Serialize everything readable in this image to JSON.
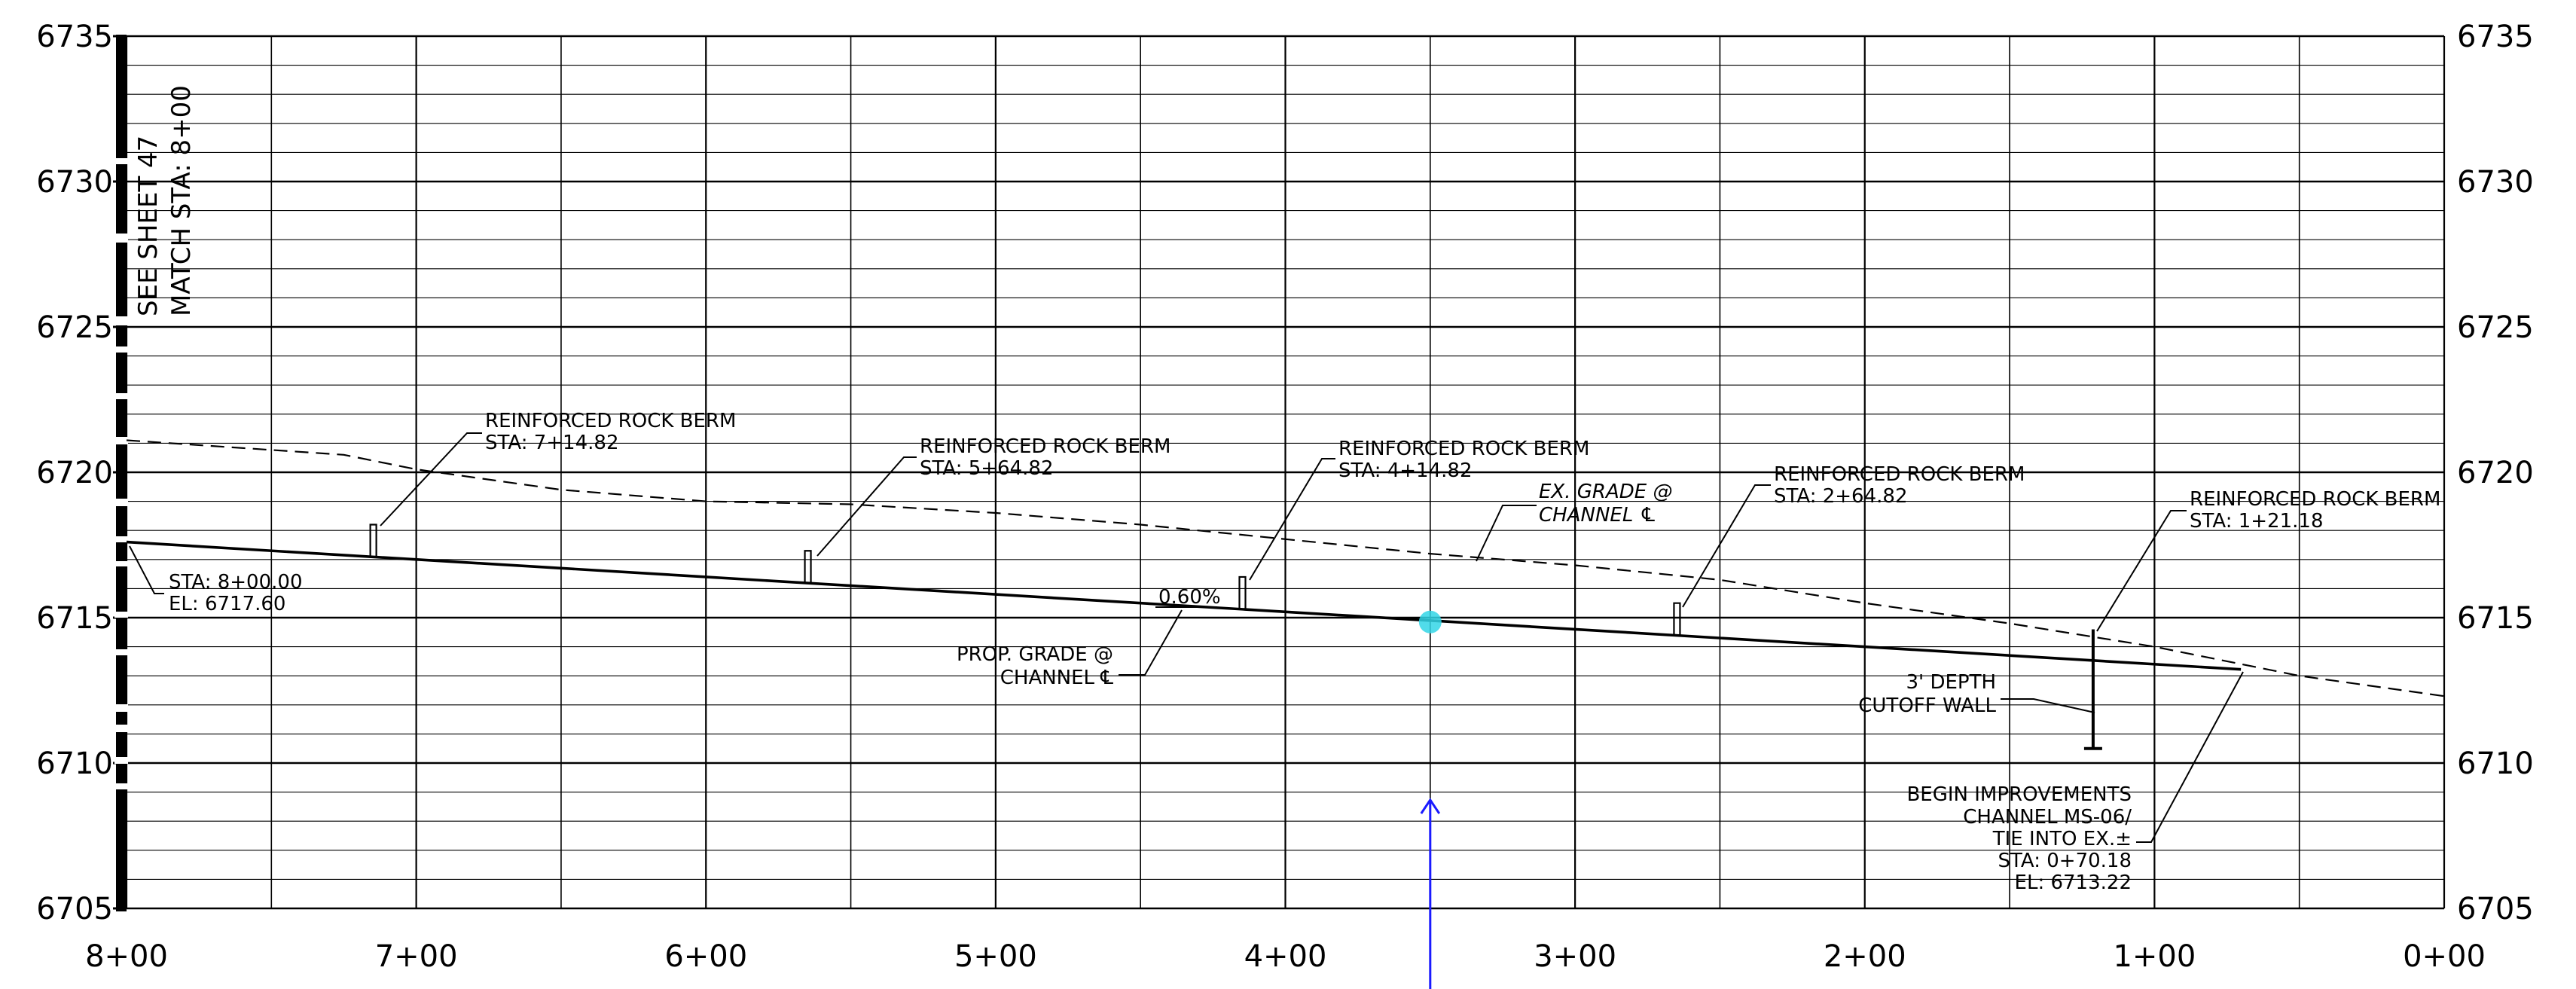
{
  "chart_data": {
    "type": "line",
    "title": "",
    "xlabel": "",
    "ylabel": "",
    "x_ticks": [
      "8+00",
      "7+00",
      "6+00",
      "5+00",
      "4+00",
      "3+00",
      "2+00",
      "1+00",
      "0+00"
    ],
    "y_ticks_left": [
      "6735",
      "6730",
      "6725",
      "6720",
      "6715",
      "6710",
      "6705"
    ],
    "y_ticks_right": [
      "6735",
      "6730",
      "6725",
      "6720",
      "6715",
      "6710",
      "6705"
    ],
    "xlim": [
      800,
      0
    ],
    "ylim": [
      6705,
      6735
    ],
    "grid": true,
    "series": [
      {
        "role": "existing-grade",
        "values": [
          [
            800,
            6721.1
          ],
          [
            725,
            6720.6
          ],
          [
            700,
            6720.1
          ],
          [
            650,
            6719.4
          ],
          [
            600,
            6719.0
          ],
          [
            550,
            6718.9
          ],
          [
            500,
            6718.6
          ],
          [
            450,
            6718.2
          ],
          [
            400,
            6717.7
          ],
          [
            350,
            6717.2
          ],
          [
            300,
            6716.8
          ],
          [
            250,
            6716.3
          ],
          [
            200,
            6715.5
          ],
          [
            150,
            6714.8
          ],
          [
            100,
            6714.0
          ],
          [
            50,
            6713.0
          ],
          [
            0,
            6712.3
          ]
        ]
      },
      {
        "role": "proposed-grade",
        "values": [
          [
            800,
            6717.6
          ],
          [
            70.18,
            6713.22
          ]
        ]
      }
    ],
    "berms": [
      {
        "sta": 714.82,
        "top": 6718.2,
        "label": "REINFORCED ROCK BERM",
        "sta_label": "STA: 7+14.82"
      },
      {
        "sta": 564.82,
        "top": 6717.3,
        "label": "REINFORCED ROCK BERM",
        "sta_label": "STA: 5+64.82"
      },
      {
        "sta": 414.82,
        "top": 6716.4,
        "label": "REINFORCED ROCK BERM",
        "sta_label": "STA: 4+14.82"
      },
      {
        "sta": 264.82,
        "top": 6715.5,
        "label": "REINFORCED ROCK BERM",
        "sta_label": "STA: 2+64.82"
      }
    ],
    "cutoff_wall": {
      "sta": 121.18,
      "top": 6714.6,
      "bottom": 6710.5,
      "label": "REINFORCED ROCK BERM",
      "sta_label": "STA: 1+21.18"
    },
    "annotations": {
      "start": {
        "line1": "STA: 8+00.00",
        "line2": "EL: 6717.60"
      },
      "slope": "0.60%",
      "prop_grade": {
        "line1": "PROP. GRADE @",
        "line2": "CHANNEL ℄"
      },
      "ex_grade": {
        "line1": "EX. GRADE @",
        "line2": "CHANNEL ℄"
      },
      "cutoff": {
        "line1": "3' DEPTH",
        "line2": "CUTOFF WALL"
      },
      "begin": {
        "line1": "BEGIN IMPROVEMENTS",
        "line2": "CHANNEL MS-06/",
        "line3": "TIE INTO EX.±",
        "line4": "STA: 0+70.18",
        "line5": "EL: 6713.22"
      },
      "match": {
        "line1": "SEE SHEET 47",
        "line2": "MATCH STA: 8+00"
      }
    },
    "marker": {
      "sta": 350,
      "el": 6714.85,
      "color": "#33d6e6"
    },
    "cursor": {
      "sta": 350,
      "color": "#1a1aff"
    }
  }
}
